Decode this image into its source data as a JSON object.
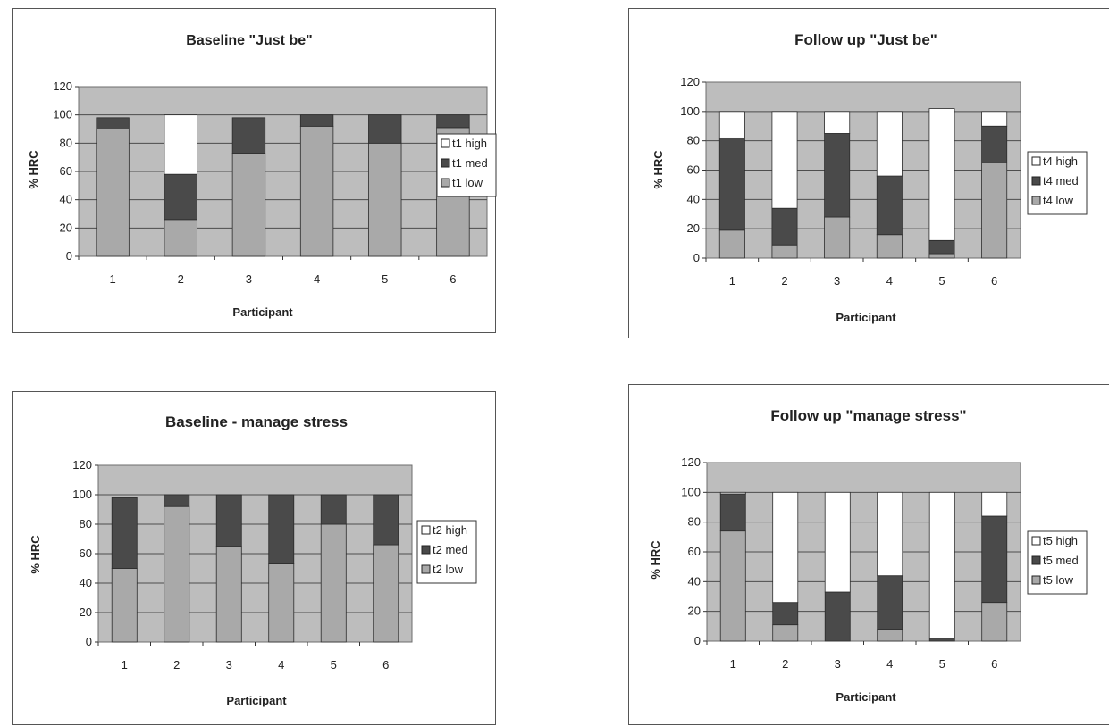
{
  "chart_data": [
    {
      "type": "bar",
      "stacked": true,
      "title": "Baseline \"Just be\"",
      "xlabel": "Participant",
      "ylabel": "% HRC",
      "categories": [
        "1",
        "2",
        "3",
        "4",
        "5",
        "6"
      ],
      "yticks": [
        "0",
        "20",
        "40",
        "60",
        "80",
        "100",
        "120"
      ],
      "ylim": [
        0,
        120
      ],
      "legend_position": "right",
      "series": [
        {
          "name": "t1 low",
          "values": [
            90,
            26,
            73,
            92,
            80,
            91
          ],
          "color": "#a9a9a9"
        },
        {
          "name": "t1 med",
          "values": [
            8,
            32,
            25,
            8,
            20,
            9
          ],
          "color": "#4a4a4a"
        },
        {
          "name": "t1 high",
          "values": [
            0,
            42,
            0,
            0,
            0,
            0
          ],
          "color": "#ffffff"
        }
      ],
      "legend_order": [
        "t1 high",
        "t1 med",
        "t1 low"
      ]
    },
    {
      "type": "bar",
      "stacked": true,
      "title": "Follow up \"Just be\"",
      "xlabel": "Participant",
      "ylabel": "% HRC",
      "categories": [
        "1",
        "2",
        "3",
        "4",
        "5",
        "6"
      ],
      "yticks": [
        "0",
        "20",
        "40",
        "60",
        "80",
        "100",
        "120"
      ],
      "ylim": [
        0,
        120
      ],
      "legend_position": "right",
      "series": [
        {
          "name": "t4 low",
          "values": [
            19,
            9,
            28,
            16,
            3,
            65
          ],
          "color": "#a9a9a9"
        },
        {
          "name": "t4 med",
          "values": [
            63,
            25,
            57,
            40,
            9,
            25
          ],
          "color": "#4a4a4a"
        },
        {
          "name": "t4 high",
          "values": [
            18,
            66,
            15,
            44,
            90,
            10
          ],
          "color": "#ffffff"
        }
      ],
      "legend_order": [
        "t4 high",
        "t4 med",
        "t4 low"
      ]
    },
    {
      "type": "bar",
      "stacked": true,
      "title": "Baseline - manage stress",
      "xlabel": "Participant",
      "ylabel": "% HRC",
      "categories": [
        "1",
        "2",
        "3",
        "4",
        "5",
        "6"
      ],
      "yticks": [
        "0",
        "20",
        "40",
        "60",
        "80",
        "100",
        "120"
      ],
      "ylim": [
        0,
        120
      ],
      "legend_position": "right",
      "series": [
        {
          "name": "t2 low",
          "values": [
            50,
            92,
            65,
            53,
            80,
            66
          ],
          "color": "#a9a9a9"
        },
        {
          "name": "t2 med",
          "values": [
            48,
            8,
            35,
            47,
            20,
            34
          ],
          "color": "#4a4a4a"
        },
        {
          "name": "t2 high",
          "values": [
            0,
            0,
            0,
            0,
            0,
            0
          ],
          "color": "#ffffff"
        }
      ],
      "legend_order": [
        "t2 high",
        "t2 med",
        "t2 low"
      ]
    },
    {
      "type": "bar",
      "stacked": true,
      "title": "Follow up \"manage stress\"",
      "xlabel": "Participant",
      "ylabel": "% HRC",
      "categories": [
        "1",
        "2",
        "3",
        "4",
        "5",
        "6"
      ],
      "yticks": [
        "0",
        "20",
        "40",
        "60",
        "80",
        "100",
        "120"
      ],
      "ylim": [
        0,
        120
      ],
      "legend_position": "right",
      "series": [
        {
          "name": "t5 low",
          "values": [
            74,
            11,
            0,
            8,
            0,
            26
          ],
          "color": "#a9a9a9"
        },
        {
          "name": "t5 med",
          "values": [
            25,
            15,
            33,
            36,
            2,
            58
          ],
          "color": "#4a4a4a"
        },
        {
          "name": "t5 high",
          "values": [
            1,
            74,
            67,
            56,
            98,
            16
          ],
          "color": "#ffffff"
        }
      ],
      "legend_order": [
        "t5 high",
        "t5 med",
        "t5 low"
      ]
    }
  ]
}
